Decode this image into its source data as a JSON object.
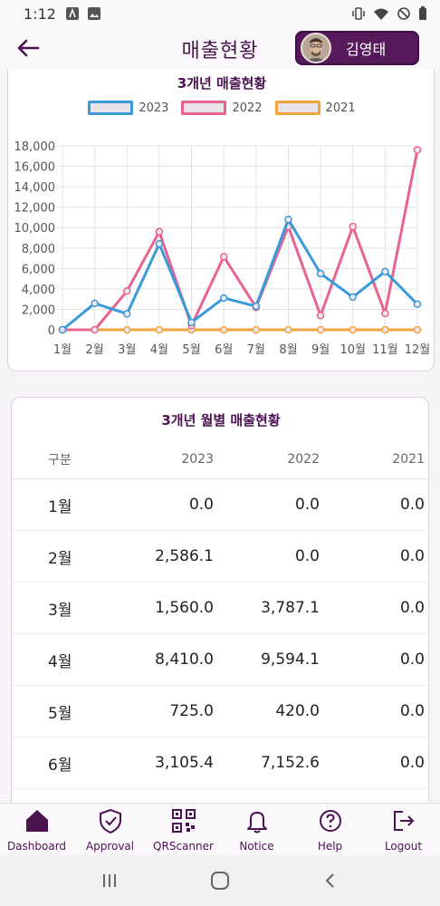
{
  "status_bar": {
    "time": "1:12",
    "icons_left": [
      "font-a-icon",
      "image-icon"
    ],
    "icons_right": [
      "vibrate-icon",
      "wifi-icon",
      "dnd-icon",
      "battery-icon"
    ]
  },
  "header": {
    "title": "매출현황",
    "back_icon": "arrow-left-icon",
    "user_name": "김영태"
  },
  "colors": {
    "primary": "#4a1350",
    "series_2023": "#3b9ad9",
    "series_2022": "#e8638f",
    "series_2021": "#f2a33b"
  },
  "chart_data": {
    "type": "line",
    "title": "3개년 매출현황",
    "categories": [
      "1월",
      "2월",
      "3월",
      "4월",
      "5월",
      "6월",
      "7월",
      "8월",
      "9월",
      "10월",
      "11월",
      "12월"
    ],
    "series": [
      {
        "name": "2023",
        "values": [
          0,
          2586.1,
          1560.0,
          8410.0,
          725.0,
          3105.4,
          2300,
          10800,
          5500,
          3200,
          5700,
          2500
        ]
      },
      {
        "name": "2022",
        "values": [
          0,
          0,
          3787.1,
          9594.1,
          420.0,
          7152.6,
          2200,
          10100,
          1400,
          10100,
          1600,
          17600
        ]
      },
      {
        "name": "2021",
        "values": [
          0,
          0,
          0,
          0,
          0,
          0,
          0,
          0,
          0,
          0,
          0,
          0
        ]
      }
    ],
    "ylim": [
      0,
      18000
    ],
    "yticks": [
      "0",
      "2,000",
      "4,000",
      "6,000",
      "8,000",
      "10,000",
      "12,000",
      "14,000",
      "16,000",
      "18,000"
    ],
    "grid": true,
    "legend": "top-center"
  },
  "table": {
    "title": "3개년 월별 매출현황",
    "headers": [
      "구분",
      "2023",
      "2022",
      "2021"
    ],
    "rows": [
      [
        "1월",
        "0.0",
        "0.0",
        "0.0"
      ],
      [
        "2월",
        "2,586.1",
        "0.0",
        "0.0"
      ],
      [
        "3월",
        "1,560.0",
        "3,787.1",
        "0.0"
      ],
      [
        "4월",
        "8,410.0",
        "9,594.1",
        "0.0"
      ],
      [
        "5월",
        "725.0",
        "420.0",
        "0.0"
      ],
      [
        "6월",
        "3,105.4",
        "7,152.6",
        "0.0"
      ]
    ]
  },
  "bottom_nav": [
    {
      "label": "Dashboard",
      "icon": "home-icon"
    },
    {
      "label": "Approval",
      "icon": "shield-check-icon"
    },
    {
      "label": "QRScanner",
      "icon": "qr-code-icon"
    },
    {
      "label": "Notice",
      "icon": "bell-icon"
    },
    {
      "label": "Help",
      "icon": "help-circle-icon"
    },
    {
      "label": "Logout",
      "icon": "logout-icon"
    }
  ],
  "system_nav": [
    "recents-icon",
    "home-circle-icon",
    "back-chevron-icon"
  ]
}
